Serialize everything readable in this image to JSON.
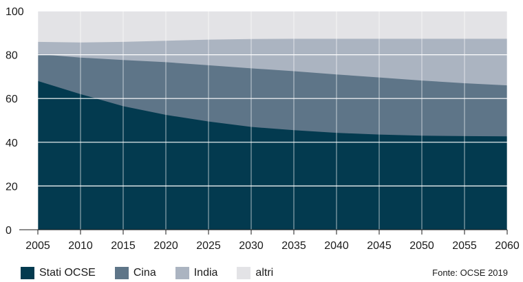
{
  "chart_data": {
    "type": "area",
    "stacked": true,
    "title": "",
    "xlabel": "",
    "ylabel": "",
    "x": [
      2005,
      2010,
      2015,
      2020,
      2025,
      2030,
      2035,
      2040,
      2045,
      2050,
      2055,
      2060
    ],
    "x_ticks": [
      "2005",
      "2010",
      "2015",
      "2020",
      "2025",
      "2030",
      "2035",
      "2040",
      "2045",
      "2050",
      "2055",
      "2060"
    ],
    "xlim": [
      2005,
      2060
    ],
    "ylim": [
      0,
      100
    ],
    "y_ticks": [
      "0",
      "20",
      "40",
      "60",
      "80",
      "100"
    ],
    "grid": true,
    "legend_position": "bottom-left",
    "series": [
      {
        "name": "Stati OCSE",
        "color": "#033a4f",
        "cumulative": [
          68,
          62,
          56.5,
          52.5,
          49.5,
          47,
          45.5,
          44.3,
          43.5,
          43,
          42.8,
          42.7
        ]
      },
      {
        "name": "Cina",
        "color": "#5e7588",
        "cumulative": [
          80.3,
          78.7,
          77.6,
          76.6,
          75.2,
          73.8,
          72.5,
          71,
          69.6,
          68.2,
          67,
          66
        ]
      },
      {
        "name": "India",
        "color": "#abb4c1",
        "cumulative": [
          85.9,
          85.6,
          85.9,
          86.4,
          86.9,
          87.2,
          87.3,
          87.3,
          87.3,
          87.3,
          87.3,
          87.3
        ]
      },
      {
        "name": "altri",
        "color": "#e3e3e6",
        "cumulative": [
          100,
          100,
          100,
          100,
          100,
          100,
          100,
          100,
          100,
          100,
          100,
          100
        ]
      }
    ],
    "source": "Fonte: OCSE 2019"
  }
}
